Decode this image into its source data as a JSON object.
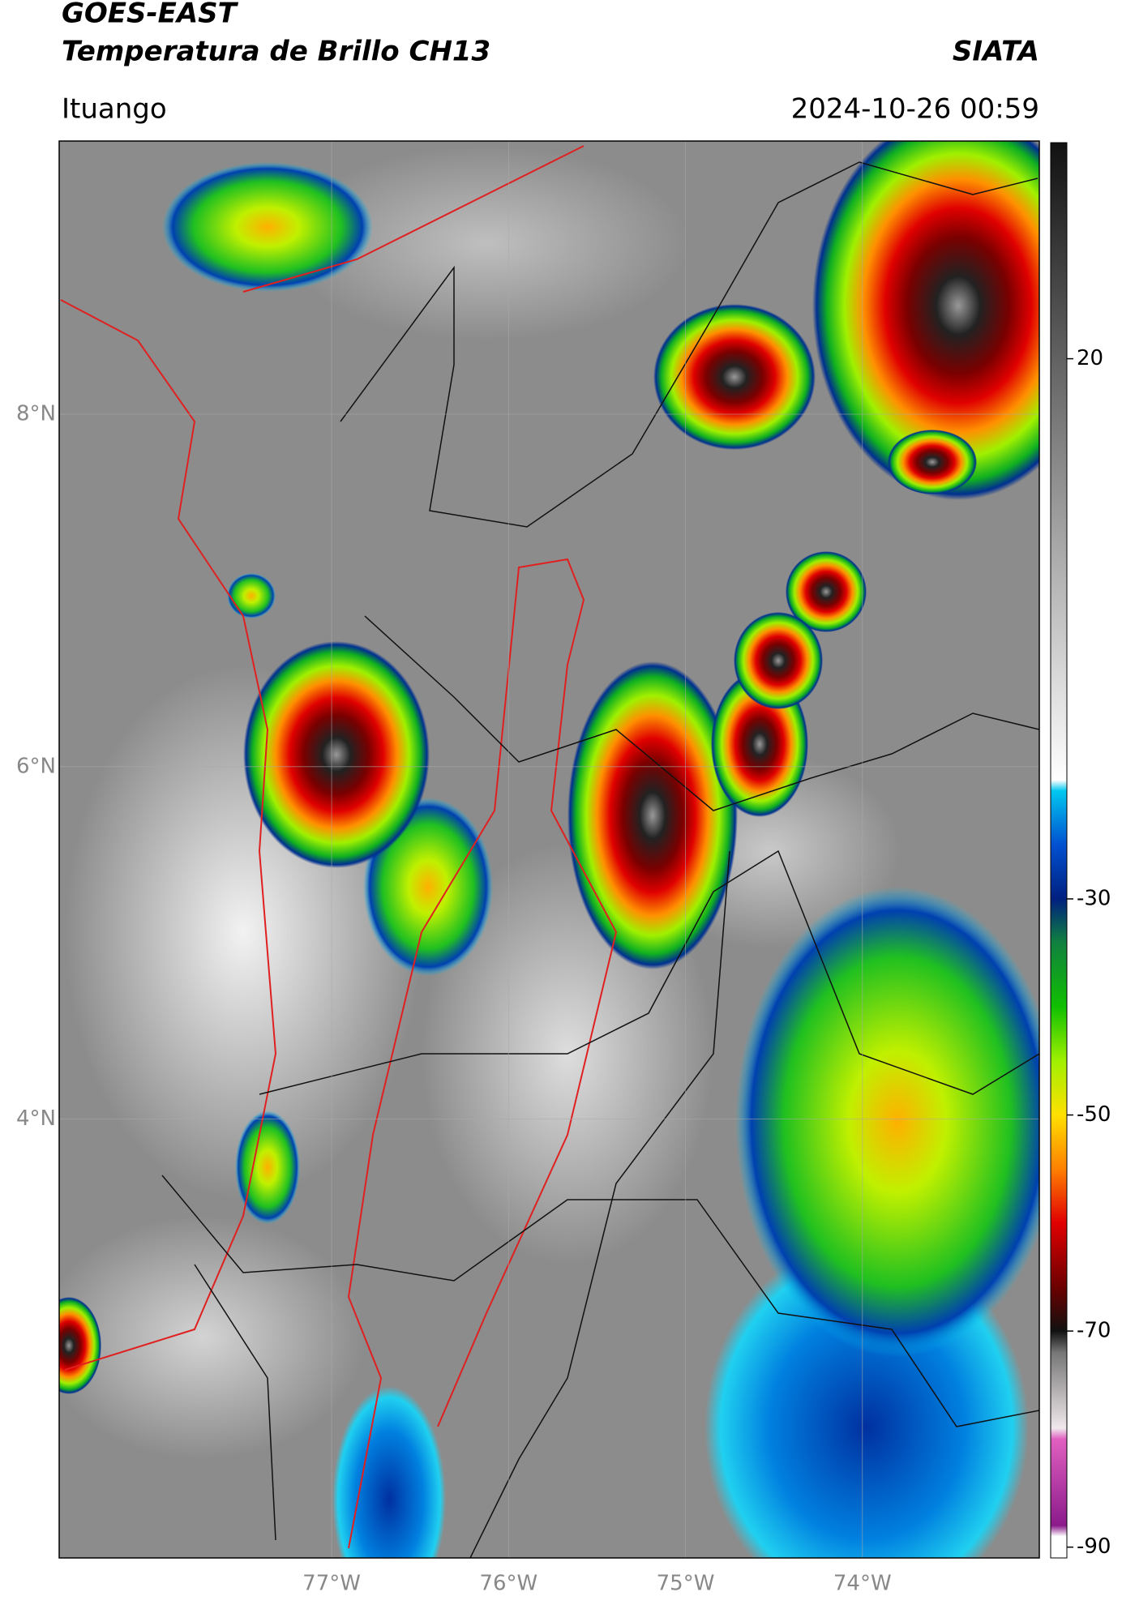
{
  "header": {
    "title": "GOES-EAST",
    "subtitle": "Temperatura de Brillo CH13",
    "brand": "SIATA",
    "location": "Ituango",
    "datetime": "2024-10-26 00:59"
  },
  "map": {
    "lon_lim": [
      -78.54,
      -73.0
    ],
    "lat_lim": [
      1.51,
      9.55
    ],
    "lat_ticks": [
      {
        "value": 8,
        "label": "8°N"
      },
      {
        "value": 6,
        "label": "6°N"
      },
      {
        "value": 4,
        "label": "4°N"
      }
    ],
    "lon_ticks": [
      {
        "value": -77,
        "label": "77°W"
      },
      {
        "value": -76,
        "label": "76°W"
      },
      {
        "value": -75,
        "label": "75°W"
      },
      {
        "value": -74,
        "label": "74°W"
      }
    ],
    "grid": true
  },
  "colorbar": {
    "lim": [
      -91,
      40
    ],
    "ticks": [
      20,
      -30,
      -50,
      -70,
      -90
    ],
    "stops": [
      {
        "value": -91,
        "color": "#ffffff"
      },
      {
        "value": -89,
        "color": "#ffffff"
      },
      {
        "value": -88,
        "color": "#8b1a8b"
      },
      {
        "value": -80,
        "color": "#e060c0"
      },
      {
        "value": -79,
        "color": "#f0e8ec"
      },
      {
        "value": -72,
        "color": "#777777"
      },
      {
        "value": -70,
        "color": "#111111"
      },
      {
        "value": -66,
        "color": "#6b0000"
      },
      {
        "value": -60,
        "color": "#e00000"
      },
      {
        "value": -55,
        "color": "#ff8000"
      },
      {
        "value": -50,
        "color": "#ffe000"
      },
      {
        "value": -45,
        "color": "#a0f000"
      },
      {
        "value": -40,
        "color": "#10c000"
      },
      {
        "value": -34,
        "color": "#108040"
      },
      {
        "value": -30,
        "color": "#002080"
      },
      {
        "value": -25,
        "color": "#0050d0"
      },
      {
        "value": -20,
        "color": "#00c8f0"
      },
      {
        "value": -19,
        "color": "#ffffff"
      },
      {
        "value": 40,
        "color": "#111111"
      }
    ]
  }
}
